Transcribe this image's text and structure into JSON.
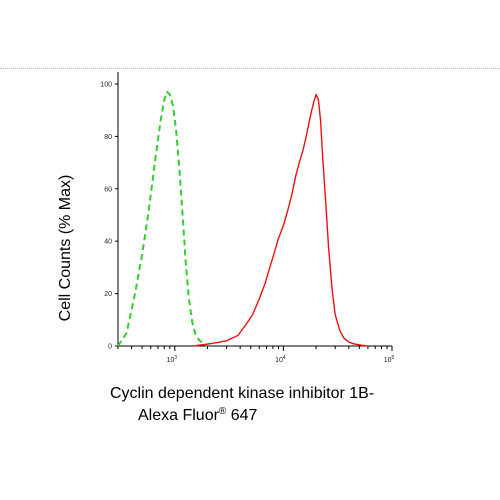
{
  "chart_data": {
    "type": "line",
    "xscale": "log",
    "xlim": [
      300,
      100000
    ],
    "ylim": [
      0,
      100
    ],
    "y_ticks": [
      0,
      20,
      40,
      60,
      80,
      100
    ],
    "y_tick_labels": [
      "0",
      "20",
      "40",
      "60",
      "80",
      "100"
    ],
    "x_major_ticks": [
      1000,
      10000,
      100000
    ],
    "x_tick_labels": [
      {
        "base": "10",
        "exp": "3"
      },
      {
        "base": "10",
        "exp": "4"
      },
      {
        "base": "10",
        "exp": "5"
      }
    ],
    "ylabel": "Cell Counts (% Max)",
    "xlabel_line1": "Cyclin dependent kinase inhibitor 1B-",
    "xlabel_line2_prefix": "Alexa Fluor",
    "xlabel_line2_sup": "®",
    "xlabel_line2_suffix": " 647",
    "grid": false,
    "series": [
      {
        "color": "#33cc33",
        "dash": "dashed",
        "x": [
          300,
          360,
          430,
          500,
          560,
          620,
          680,
          740,
          800,
          850,
          900,
          960,
          1030,
          1100,
          1180,
          1260,
          1350,
          1450,
          1560,
          1700,
          1850,
          2000
        ],
        "y": [
          0,
          5,
          20,
          35,
          48,
          62,
          75,
          86,
          94,
          97,
          96,
          92,
          82,
          68,
          50,
          32,
          18,
          9,
          4,
          2,
          1,
          0
        ]
      },
      {
        "color": "#ee1111",
        "dash": "solid",
        "x": [
          1500,
          2200,
          3000,
          3800,
          4500,
          5200,
          6000,
          6800,
          7500,
          8300,
          9000,
          10000,
          11000,
          12000,
          13000,
          14000,
          15000,
          16000,
          17000,
          18000,
          19000,
          20000,
          21000,
          22000,
          23000,
          24500,
          26000,
          28000,
          30000,
          33000,
          36000,
          40000,
          45000,
          52000,
          60000
        ],
        "y": [
          0,
          1,
          2,
          4,
          8,
          12,
          18,
          24,
          30,
          36,
          41,
          46,
          52,
          58,
          65,
          70,
          74,
          79,
          84,
          89,
          93,
          96,
          94,
          86,
          72,
          55,
          38,
          22,
          12,
          6,
          3,
          1.5,
          0.8,
          0.3,
          0
        ]
      }
    ]
  }
}
